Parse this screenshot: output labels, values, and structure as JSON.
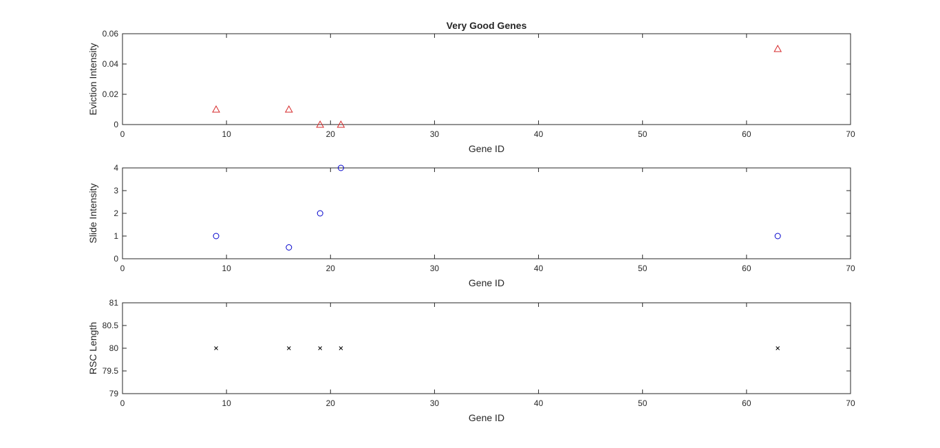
{
  "chart_data": [
    {
      "type": "scatter",
      "title": "Very Good Genes",
      "xlabel": "Gene ID",
      "ylabel": "Eviction Intensity",
      "xlim": [
        0,
        70
      ],
      "ylim": [
        0,
        0.06
      ],
      "xticks": [
        "0",
        "10",
        "20",
        "30",
        "40",
        "50",
        "60",
        "70"
      ],
      "yticks": [
        "0",
        "0.02",
        "0.04",
        "0.06"
      ],
      "marker": "triangle",
      "color": "#d62728",
      "grid": false,
      "points": [
        {
          "x": 9,
          "y": 0.01
        },
        {
          "x": 16,
          "y": 0.01
        },
        {
          "x": 19,
          "y": 0.0
        },
        {
          "x": 21,
          "y": 0.0
        },
        {
          "x": 63,
          "y": 0.05
        }
      ]
    },
    {
      "type": "scatter",
      "title": "",
      "xlabel": "Gene ID",
      "ylabel": "Slide Intensity",
      "xlim": [
        0,
        70
      ],
      "ylim": [
        0,
        4
      ],
      "xticks": [
        "0",
        "10",
        "20",
        "30",
        "40",
        "50",
        "60",
        "70"
      ],
      "yticks": [
        "0",
        "1",
        "2",
        "3",
        "4"
      ],
      "marker": "circle",
      "color": "#0000cc",
      "grid": false,
      "points": [
        {
          "x": 9,
          "y": 1
        },
        {
          "x": 16,
          "y": 0.5
        },
        {
          "x": 19,
          "y": 2
        },
        {
          "x": 21,
          "y": 4
        },
        {
          "x": 63,
          "y": 1
        }
      ]
    },
    {
      "type": "scatter",
      "title": "",
      "xlabel": "Gene ID",
      "ylabel": "RSC Length",
      "xlim": [
        0,
        70
      ],
      "ylim": [
        79,
        81
      ],
      "xticks": [
        "0",
        "10",
        "20",
        "30",
        "40",
        "50",
        "60",
        "70"
      ],
      "yticks": [
        "79",
        "79.5",
        "80",
        "80.5",
        "81"
      ],
      "marker": "x",
      "color": "#000000",
      "grid": false,
      "points": [
        {
          "x": 9,
          "y": 80
        },
        {
          "x": 16,
          "y": 80
        },
        {
          "x": 19,
          "y": 80
        },
        {
          "x": 21,
          "y": 80
        },
        {
          "x": 63,
          "y": 80
        }
      ]
    }
  ]
}
